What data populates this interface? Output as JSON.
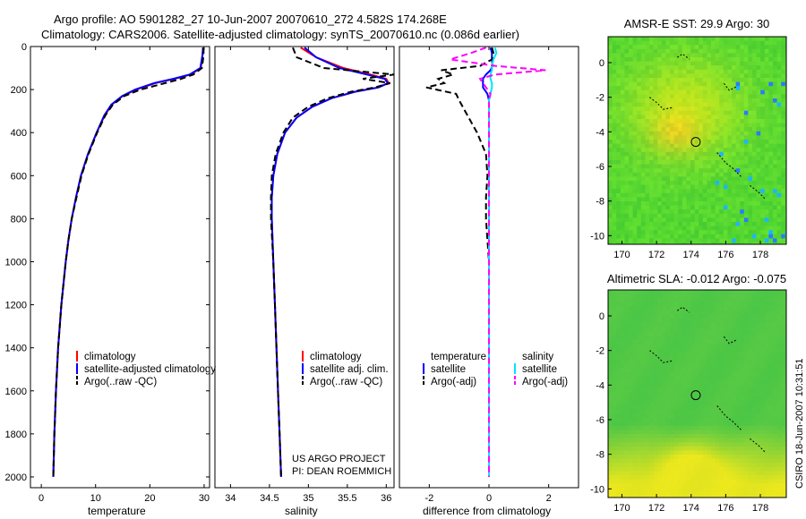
{
  "header": {
    "line1": "Argo profile: AO 5901282_27 10-Jun-2007 20070610_272 4.582S 174.268E",
    "line2": "Climatology: CARS2006. Satellite-adjusted climatology: synTS_20070610.nc (0.086d earlier)"
  },
  "footer": {
    "project": "US ARGO PROJECT",
    "pi": "PI: DEAN ROEMMICH",
    "stamp": "CSIRO 18-Jun-2007 10:31:51"
  },
  "colors": {
    "climatology": "#ff0000",
    "satellite": "#0000ff",
    "argo": "#000000",
    "salinity_satellite": "#00e5ff",
    "salinity_argo": "#ff00ff"
  },
  "chart_data": [
    {
      "id": "temperature",
      "type": "line",
      "xlabel": "temperature",
      "ylabel": "",
      "xlim": [
        -2,
        31
      ],
      "ylim": [
        2050,
        0
      ],
      "xticks": [
        0,
        10,
        20,
        30
      ],
      "yticks": [
        0,
        200,
        400,
        600,
        800,
        1000,
        1200,
        1400,
        1600,
        1800,
        2000
      ],
      "legend": [
        "climatology",
        "satellite-adjusted climatology",
        "Argo(..raw -QC)"
      ],
      "depth": [
        5,
        40,
        100,
        130,
        150,
        170,
        200,
        230,
        270,
        320,
        400,
        500,
        600,
        700,
        800,
        900,
        1000,
        1200,
        1400,
        1600,
        1800,
        2000
      ],
      "series": [
        {
          "name": "climatology",
          "color": "#ff0000",
          "dash": "",
          "x": [
            29.8,
            29.7,
            29.4,
            27.5,
            24.5,
            21.0,
            17.5,
            15.0,
            13.0,
            11.7,
            10.2,
            8.6,
            7.3,
            6.4,
            5.6,
            5.0,
            4.5,
            3.7,
            3.1,
            2.7,
            2.4,
            2.2
          ]
        },
        {
          "name": "satellite-adjusted climatology",
          "color": "#0000ff",
          "dash": "",
          "x": [
            29.8,
            29.7,
            29.3,
            27.3,
            24.3,
            20.8,
            17.3,
            14.9,
            12.9,
            11.6,
            10.2,
            8.6,
            7.3,
            6.4,
            5.6,
            5.0,
            4.5,
            3.7,
            3.1,
            2.7,
            2.4,
            2.2
          ]
        },
        {
          "name": "Argo(..raw -QC)",
          "color": "#000000",
          "dash": "7,4",
          "x": [
            29.9,
            29.9,
            29.6,
            28.0,
            25.8,
            22.8,
            18.3,
            15.3,
            13.2,
            11.8,
            10.3,
            8.7,
            7.4,
            6.5,
            5.6,
            5.0,
            4.5,
            3.7,
            3.1,
            2.7,
            2.4,
            2.2
          ]
        }
      ]
    },
    {
      "id": "salinity",
      "type": "line",
      "xlabel": "salinity",
      "ylabel": "",
      "xlim": [
        33.8,
        36.1
      ],
      "ylim": [
        2050,
        0
      ],
      "xticks": [
        34,
        34.5,
        35,
        35.5,
        36
      ],
      "legend": [
        "climatology",
        "satellite adj. clim.",
        "Argo(..raw -QC)"
      ],
      "depth": [
        5,
        50,
        100,
        130,
        150,
        170,
        190,
        210,
        240,
        280,
        330,
        400,
        500,
        600,
        700,
        800,
        1000,
        1200,
        1400,
        1600,
        1800,
        2000
      ],
      "series": [
        {
          "name": "climatology",
          "color": "#ff0000",
          "dash": "",
          "x": [
            34.9,
            35.1,
            35.45,
            35.8,
            36.0,
            36.03,
            35.9,
            35.6,
            35.3,
            35.05,
            34.85,
            34.7,
            34.6,
            34.55,
            34.53,
            34.53,
            34.55,
            34.57,
            34.59,
            34.61,
            34.63,
            34.65
          ]
        },
        {
          "name": "satellite adj. clim.",
          "color": "#0000ff",
          "dash": "",
          "x": [
            34.95,
            35.1,
            35.4,
            35.75,
            35.98,
            36.02,
            35.9,
            35.6,
            35.3,
            35.05,
            34.85,
            34.7,
            34.6,
            34.55,
            34.53,
            34.53,
            34.55,
            34.57,
            34.59,
            34.61,
            34.63,
            34.65
          ]
        },
        {
          "name": "Argo(..raw -QC)",
          "color": "#000000",
          "dash": "7,4",
          "x": [
            34.8,
            34.85,
            35.2,
            36.1,
            35.7,
            36.05,
            35.85,
            35.55,
            35.25,
            35.0,
            34.8,
            34.68,
            34.58,
            34.53,
            34.52,
            34.52,
            34.55,
            34.57,
            34.59,
            34.61,
            34.63,
            34.65
          ]
        }
      ]
    },
    {
      "id": "difference",
      "type": "line",
      "xlabel": "difference from climatology",
      "ylabel": "",
      "xlim": [
        -3,
        3
      ],
      "ylim": [
        2050,
        0
      ],
      "xticks": [
        -2,
        0,
        2
      ],
      "legend_temperature": [
        "temperature",
        "satellite",
        "Argo(-adj)"
      ],
      "legend_salinity": [
        "salinity",
        "satellite",
        "Argo(-adj)"
      ],
      "depth": [
        5,
        30,
        60,
        90,
        110,
        130,
        150,
        170,
        190,
        220,
        250,
        300,
        350,
        400,
        500,
        600,
        700,
        800,
        900,
        1000,
        1500,
        2000
      ],
      "series": [
        {
          "name": "temperature satellite",
          "color": "#0000ff",
          "dash": "",
          "x": [
            0.05,
            0.1,
            0.1,
            0.12,
            0.05,
            -0.1,
            -0.2,
            -0.2,
            -0.2,
            -0.05,
            0.0,
            0.0,
            0.0,
            0.0,
            0.0,
            0.0,
            0.0,
            0.0,
            0.0,
            0.0,
            0.0,
            0.0
          ]
        },
        {
          "name": "temperature Argo(-adj)",
          "color": "#000000",
          "dash": "7,4",
          "x": [
            0.1,
            0.15,
            0.1,
            -0.3,
            -1.6,
            -1.2,
            -1.7,
            -1.5,
            -2.1,
            -1.1,
            -1.0,
            -0.8,
            -0.6,
            -0.4,
            -0.1,
            -0.05,
            -0.1,
            -0.1,
            -0.05,
            0.0,
            0.0,
            0.0
          ]
        },
        {
          "name": "salinity satellite",
          "color": "#00e5ff",
          "dash": "",
          "x": [
            0.2,
            0.25,
            0.15,
            0.1,
            0.1,
            0.05,
            0.05,
            0.1,
            0.1,
            0.05,
            0.0,
            0.0,
            0.0,
            0.0,
            0.0,
            0.0,
            0.0,
            0.0,
            0.0,
            0.0,
            0.0,
            0.0
          ]
        },
        {
          "name": "salinity Argo(-adj)",
          "color": "#ff00ff",
          "dash": "7,4",
          "x": [
            -0.1,
            -0.6,
            -1.3,
            0.2,
            1.9,
            0.2,
            -0.3,
            -0.2,
            -0.1,
            0.05,
            0.0,
            0.0,
            0.0,
            0.0,
            0.0,
            0.0,
            0.0,
            0.0,
            0.0,
            0.0,
            0.0,
            0.0
          ]
        }
      ]
    },
    {
      "id": "sst",
      "type": "heatmap",
      "title": "AMSR-E SST: 29.9 Argo: 30",
      "xlim": [
        169.2,
        179.5
      ],
      "ylim": [
        -10.5,
        1.5
      ],
      "xticks": [
        170,
        172,
        174,
        176,
        178
      ],
      "yticks": [
        0,
        -2,
        -4,
        -6,
        -8,
        -10
      ],
      "argo_position": {
        "lon": 174.268,
        "lat": -4.582
      }
    },
    {
      "id": "sla",
      "type": "heatmap",
      "title": "Altimetric SLA: -0.012 Argo: -0.075",
      "xlim": [
        169.2,
        179.5
      ],
      "ylim": [
        -10.5,
        1.5
      ],
      "xticks": [
        170,
        172,
        174,
        176,
        178
      ],
      "yticks": [
        0,
        -2,
        -4,
        -6,
        -8,
        -10
      ],
      "argo_position": {
        "lon": 174.268,
        "lat": -4.582
      }
    }
  ]
}
